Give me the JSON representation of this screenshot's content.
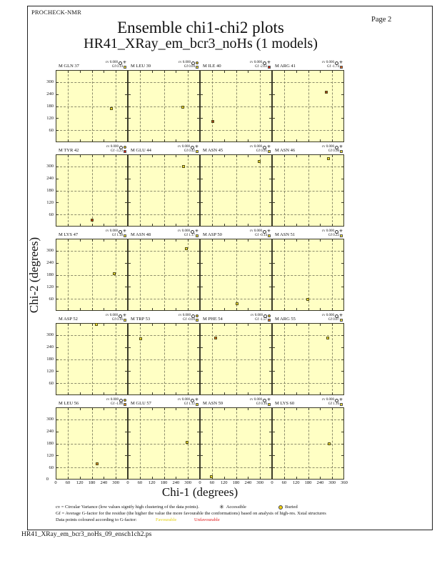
{
  "page": {
    "app_name": "PROCHECK-NMR",
    "page_label": "Page  2",
    "title": "Ensemble chi1-chi2 plots",
    "subtitle": "HR41_XRay_em_bcr3_noHs (1 models)",
    "footer": "HR41_XRay_em_bcr3_noHs_09_ensch1ch2.ps"
  },
  "legend": {
    "line1": "cv = Circular Variance (low values signify high clustering of the data points).",
    "accessible_label": "Accessible",
    "buried_label": "Buried",
    "line2": "Gf = Average G-factor for the residue (the higher the value the more favourable the conformations) based on analysis of high-res. Xstal structures",
    "line3": "Data points coloured according to G-factor:",
    "favourable_label": "Favourable",
    "unfavourable_label": "Unfavourable"
  },
  "colors": {
    "plot_background": "#ffffc4",
    "plot_border": "#3a3a28",
    "gridline": "#8c8c6a",
    "favourable_yellow": "#efdf2e",
    "unfavourable_red": "#df2410",
    "buried_symbol_yellow": "#f2cf0c"
  },
  "chart_data": {
    "type": "scatter",
    "title": "Ensemble chi1-chi2 plots",
    "xlabel": "Chi-1 (degrees)",
    "ylabel": "Chi-2 (degrees)",
    "xlim": [
      0,
      360
    ],
    "ylim": [
      0,
      360
    ],
    "grid": "dashed lines at 60, 180, 300 on both axes; edge ticks every 60",
    "x_tick_labels": [
      "0",
      "60",
      "120",
      "180",
      "240",
      "300"
    ],
    "x_final_tick": "360",
    "y_tick_labels": [
      "300",
      "240",
      "180",
      "120",
      "60"
    ],
    "y_zero_label": "0",
    "stat_labels": {
      "cv": "cv",
      "gf": "Gf"
    },
    "plots": [
      {
        "residue": "M GLN 37",
        "cv": "0.000",
        "gf": "0.14",
        "buried": false,
        "gf_color": "#efdf2e",
        "point": {
          "chi1": 279,
          "chi2": 169,
          "color": "#efdf2e"
        }
      },
      {
        "residue": "M LEU 39",
        "cv": "0.000",
        "gf": "0.04",
        "buried": true,
        "gf_color": "#efdf2e",
        "point": {
          "chi1": 278,
          "chi2": 174,
          "color": "#efdf2e"
        }
      },
      {
        "residue": "M ILE 40",
        "cv": "0.000",
        "gf": "-2.63",
        "buried": false,
        "gf_color": "#df2410",
        "point": {
          "chi1": 61,
          "chi2": 103,
          "color": "#a63c1e"
        }
      },
      {
        "residue": "M ARG 41",
        "cv": "0.000",
        "gf": "-1.74",
        "buried": false,
        "gf_color": "#e2611a",
        "point": {
          "chi1": 273,
          "chi2": 250,
          "color": "#a63c1e"
        }
      },
      {
        "residue": "M TYR 42",
        "cv": "0.000",
        "gf": "-3.23",
        "buried": true,
        "gf_color": "#df1d10",
        "point": {
          "chi1": 180,
          "chi2": 28,
          "color": "#bf2c15"
        }
      },
      {
        "residue": "M GLU 44",
        "cv": "0.000",
        "gf": "0.42",
        "buried": false,
        "gf_color": "#efdf2e",
        "point": {
          "chi1": 281,
          "chi2": 302,
          "color": "#efdf2e"
        }
      },
      {
        "residue": "M ASN 45",
        "cv": "0.000",
        "gf": "0.95",
        "buried": false,
        "gf_color": "#efdf2e",
        "point": {
          "chi1": 297,
          "chi2": 327,
          "color": "#efdf2e"
        }
      },
      {
        "residue": "M ASN 46",
        "cv": "0.000",
        "gf": "0.98",
        "buried": false,
        "gf_color": "#efdf2e",
        "point": {
          "chi1": 282,
          "chi2": 342,
          "color": "#efdf2e"
        }
      },
      {
        "residue": "M LYS 47",
        "cv": "0.000",
        "gf": "1.18",
        "buried": false,
        "gf_color": "#efdf2e",
        "point": {
          "chi1": 293,
          "chi2": 187,
          "color": "#efdf2e"
        }
      },
      {
        "residue": "M ASN 48",
        "cv": "0.000",
        "gf": "1.17",
        "buried": false,
        "gf_color": "#efdf2e",
        "point": {
          "chi1": 295,
          "chi2": 313,
          "color": "#efdf2e"
        }
      },
      {
        "residue": "M ASP 50",
        "cv": "0.000",
        "gf": "-0.14",
        "buried": false,
        "gf_color": "#efdf2e",
        "point": {
          "chi1": 187,
          "chi2": 31,
          "color": "#efdf2e"
        }
      },
      {
        "residue": "M ASN 51",
        "cv": "0.000",
        "gf": "0.22",
        "buried": false,
        "gf_color": "#efdf2e",
        "point": {
          "chi1": 178,
          "chi2": 53,
          "color": "#efdf2e"
        }
      },
      {
        "residue": "M ASP 52",
        "cv": "0.000",
        "gf": "0.16",
        "buried": false,
        "gf_color": "#efdf2e",
        "point": {
          "chi1": 204,
          "chi2": 357,
          "color": "#efdf2e"
        }
      },
      {
        "residue": "M TRP 53",
        "cv": "0.000",
        "gf": "-0.04",
        "buried": true,
        "gf_color": "#efdf2e",
        "point": {
          "chi1": 63,
          "chi2": 284,
          "color": "#efdf2e"
        }
      },
      {
        "residue": "M PHE 54",
        "cv": "0.000",
        "gf": "-1.57",
        "buried": true,
        "gf_color": "#e0731a",
        "point": {
          "chi1": 78,
          "chi2": 288,
          "color": "#d2691e"
        }
      },
      {
        "residue": "M ARG 55",
        "cv": "0.000",
        "gf": "0.07",
        "buried": false,
        "gf_color": "#efdf2e",
        "point": {
          "chi1": 281,
          "chi2": 288,
          "color": "#efdf2e"
        }
      },
      {
        "residue": "M LEU 56",
        "cv": "0.000",
        "gf": "-1.00",
        "buried": true,
        "gf_color": "#e6941e",
        "point": {
          "chi1": 207,
          "chi2": 77,
          "color": "#dc8c2a"
        }
      },
      {
        "residue": "M GLU 57",
        "cv": "0.000",
        "gf": "1.12",
        "buried": false,
        "gf_color": "#efdf2e",
        "point": {
          "chi1": 297,
          "chi2": 187,
          "color": "#efdf2e"
        }
      },
      {
        "residue": "M ASN 59",
        "cv": "0.000",
        "gf": "0.16",
        "buried": false,
        "gf_color": "#efdf2e",
        "point": {
          "chi1": 55,
          "chi2": 11,
          "color": "#efdf2e"
        }
      },
      {
        "residue": "M LYS 60",
        "cv": "0.000",
        "gf": "1.16",
        "buried": false,
        "gf_color": "#efdf2e",
        "point": {
          "chi1": 286,
          "chi2": 180,
          "color": "#efdf2e"
        }
      }
    ]
  }
}
